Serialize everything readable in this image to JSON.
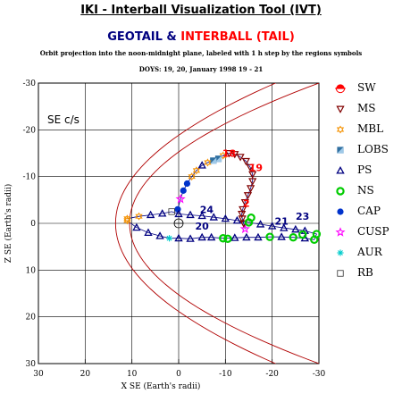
{
  "header": {
    "title": "IKI - Interball Visualization Tool (IVT)",
    "spacecraft_a": "GEOTAIL",
    "amp": "&",
    "spacecraft_b": "INTERBALL (TAIL)",
    "subtitle": "Orbit projection into the noon-midnight plane, labeled with 1 h step by the regions symbols",
    "dates": "DOYS: 19, 20,    January 1998 19 - 21"
  },
  "colors": {
    "geotail": "#000080",
    "interball": "#ff0000",
    "boundary": "#b00000"
  },
  "legend": [
    {
      "label": "SW",
      "icon": "sw-icon"
    },
    {
      "label": "MS",
      "icon": "ms-icon"
    },
    {
      "label": "MBL",
      "icon": "mbl-icon"
    },
    {
      "label": "LOBS",
      "icon": "lobs-icon"
    },
    {
      "label": "PS",
      "icon": "ps-icon"
    },
    {
      "label": "NS",
      "icon": "ns-icon"
    },
    {
      "label": "CAP",
      "icon": "cap-icon"
    },
    {
      "label": "CUSP",
      "icon": "cusp-icon"
    },
    {
      "label": "AUR",
      "icon": "aur-icon"
    },
    {
      "label": "RB",
      "icon": "rb-icon"
    }
  ],
  "chart_data": {
    "type": "scatter",
    "frame_label": "SE c/s",
    "xlabel": "X SE (Earth's radii)",
    "ylabel": "Z SE (Earth's radii)",
    "xlim": [
      30,
      -30
    ],
    "ylim": [
      30,
      -30
    ],
    "xticks": [
      "30",
      "20",
      "10",
      "0",
      "-10",
      "-20",
      "-30"
    ],
    "yticks": [
      "-30",
      "-20",
      "-10",
      "0",
      "10",
      "20",
      "30"
    ],
    "hour_labels": [
      {
        "text": "18",
        "x": -10.8,
        "y": -14.2,
        "series": "INTERBALL (TAIL)"
      },
      {
        "text": "19",
        "x": -16.5,
        "y": -11.2,
        "series": "INTERBALL (TAIL)"
      },
      {
        "text": "2",
        "x": -14.5,
        "y": -3.5,
        "series": "INTERBALL (TAIL)"
      },
      {
        "text": "24",
        "x": -6.0,
        "y": -2.2,
        "series": "GEOTAIL"
      },
      {
        "text": "20",
        "x": -5.0,
        "y": 1.3,
        "series": "GEOTAIL"
      },
      {
        "text": "21",
        "x": -22.0,
        "y": 0.3,
        "series": "GEOTAIL"
      },
      {
        "text": "23",
        "x": -26.5,
        "y": -0.8,
        "series": "GEOTAIL"
      }
    ],
    "series": [
      {
        "name": "INTERBALL (TAIL)",
        "points": [
          [
            -14.2,
            1.2,
            "cusp"
          ],
          [
            -13.9,
            0.0,
            "ms"
          ],
          [
            -13.6,
            -1.0,
            "ms"
          ],
          [
            -13.5,
            -2.0,
            "ms"
          ],
          [
            -13.7,
            -3.0,
            "ms"
          ],
          [
            -14.2,
            -4.5,
            "ms"
          ],
          [
            -14.8,
            -6.0,
            "ms"
          ],
          [
            -15.4,
            -7.5,
            "ms"
          ],
          [
            -15.8,
            -9.0,
            "ms"
          ],
          [
            -15.8,
            -10.5,
            "ms"
          ],
          [
            -15.3,
            -12.0,
            "ms"
          ],
          [
            -14.4,
            -13.3,
            "ms"
          ],
          [
            -13.2,
            -14.2,
            "ms"
          ],
          [
            -12.0,
            -14.8,
            "ms"
          ],
          [
            -10.8,
            -15.0,
            "ms"
          ],
          [
            -9.5,
            -14.5,
            "mbl"
          ],
          [
            -8.5,
            -13.8,
            "lobs"
          ],
          [
            -7.4,
            -13.4,
            "lobs"
          ],
          [
            -6.2,
            -13.0,
            "mbl"
          ],
          [
            -5.0,
            -12.4,
            "ps"
          ],
          [
            -3.8,
            -11.3,
            "mbl"
          ],
          [
            -2.8,
            -10.0,
            "mbl"
          ],
          [
            -1.8,
            -8.5,
            "cap"
          ],
          [
            -1.0,
            -7.0,
            "cap"
          ],
          [
            -0.4,
            -5.2,
            "cusp"
          ],
          [
            0.2,
            -3.0,
            "cap"
          ]
        ]
      },
      {
        "name": "GEOTAIL",
        "points": [
          [
            11.0,
            -1.0,
            "mbl"
          ],
          [
            8.5,
            -1.5,
            "mbl"
          ],
          [
            6.0,
            -1.8,
            "ps"
          ],
          [
            3.5,
            -2.1,
            "ps"
          ],
          [
            1.5,
            -2.5,
            "rb"
          ],
          [
            0.0,
            -2.0,
            "ps"
          ],
          [
            -2.5,
            -1.8,
            "ps"
          ],
          [
            -5.0,
            -1.6,
            "ps"
          ],
          [
            -7.5,
            -1.3,
            "ps"
          ],
          [
            -10.0,
            -1.0,
            "ps"
          ],
          [
            -12.5,
            -0.6,
            "ps"
          ],
          [
            -15.0,
            -0.2,
            "ns"
          ],
          [
            -17.5,
            0.2,
            "ps"
          ],
          [
            -20.0,
            0.6,
            "ps"
          ],
          [
            -22.5,
            1.0,
            "ps"
          ],
          [
            -25.0,
            1.3,
            "ps"
          ],
          [
            -27.0,
            1.6,
            "ps"
          ],
          [
            -29.5,
            2.3,
            "ns"
          ],
          [
            -29.0,
            3.5,
            "ns"
          ],
          [
            -27.0,
            3.2,
            "ps"
          ],
          [
            -24.5,
            3.0,
            "ns"
          ],
          [
            -22.0,
            2.9,
            "ps"
          ],
          [
            -19.5,
            2.9,
            "ns"
          ],
          [
            -17.0,
            3.0,
            "ps"
          ],
          [
            -14.5,
            3.0,
            "ps"
          ],
          [
            -12.0,
            3.1,
            "ps"
          ],
          [
            -9.5,
            3.2,
            "ns"
          ],
          [
            -7.0,
            3.0,
            "ps"
          ],
          [
            -5.0,
            3.0,
            "ps"
          ],
          [
            -2.5,
            3.3,
            "ps"
          ],
          [
            0.0,
            3.2,
            "ps"
          ],
          [
            2.0,
            3.2,
            "aur"
          ],
          [
            4.0,
            2.7,
            "ps"
          ],
          [
            6.5,
            2.0,
            "ps"
          ],
          [
            9.0,
            0.9,
            "ps"
          ],
          [
            11.0,
            -0.6,
            "mbl"
          ],
          [
            -15.5,
            -1.2,
            "ns"
          ],
          [
            -26.5,
            2.4,
            "ns"
          ],
          [
            -10.5,
            3.3,
            "ns"
          ]
        ]
      }
    ]
  }
}
